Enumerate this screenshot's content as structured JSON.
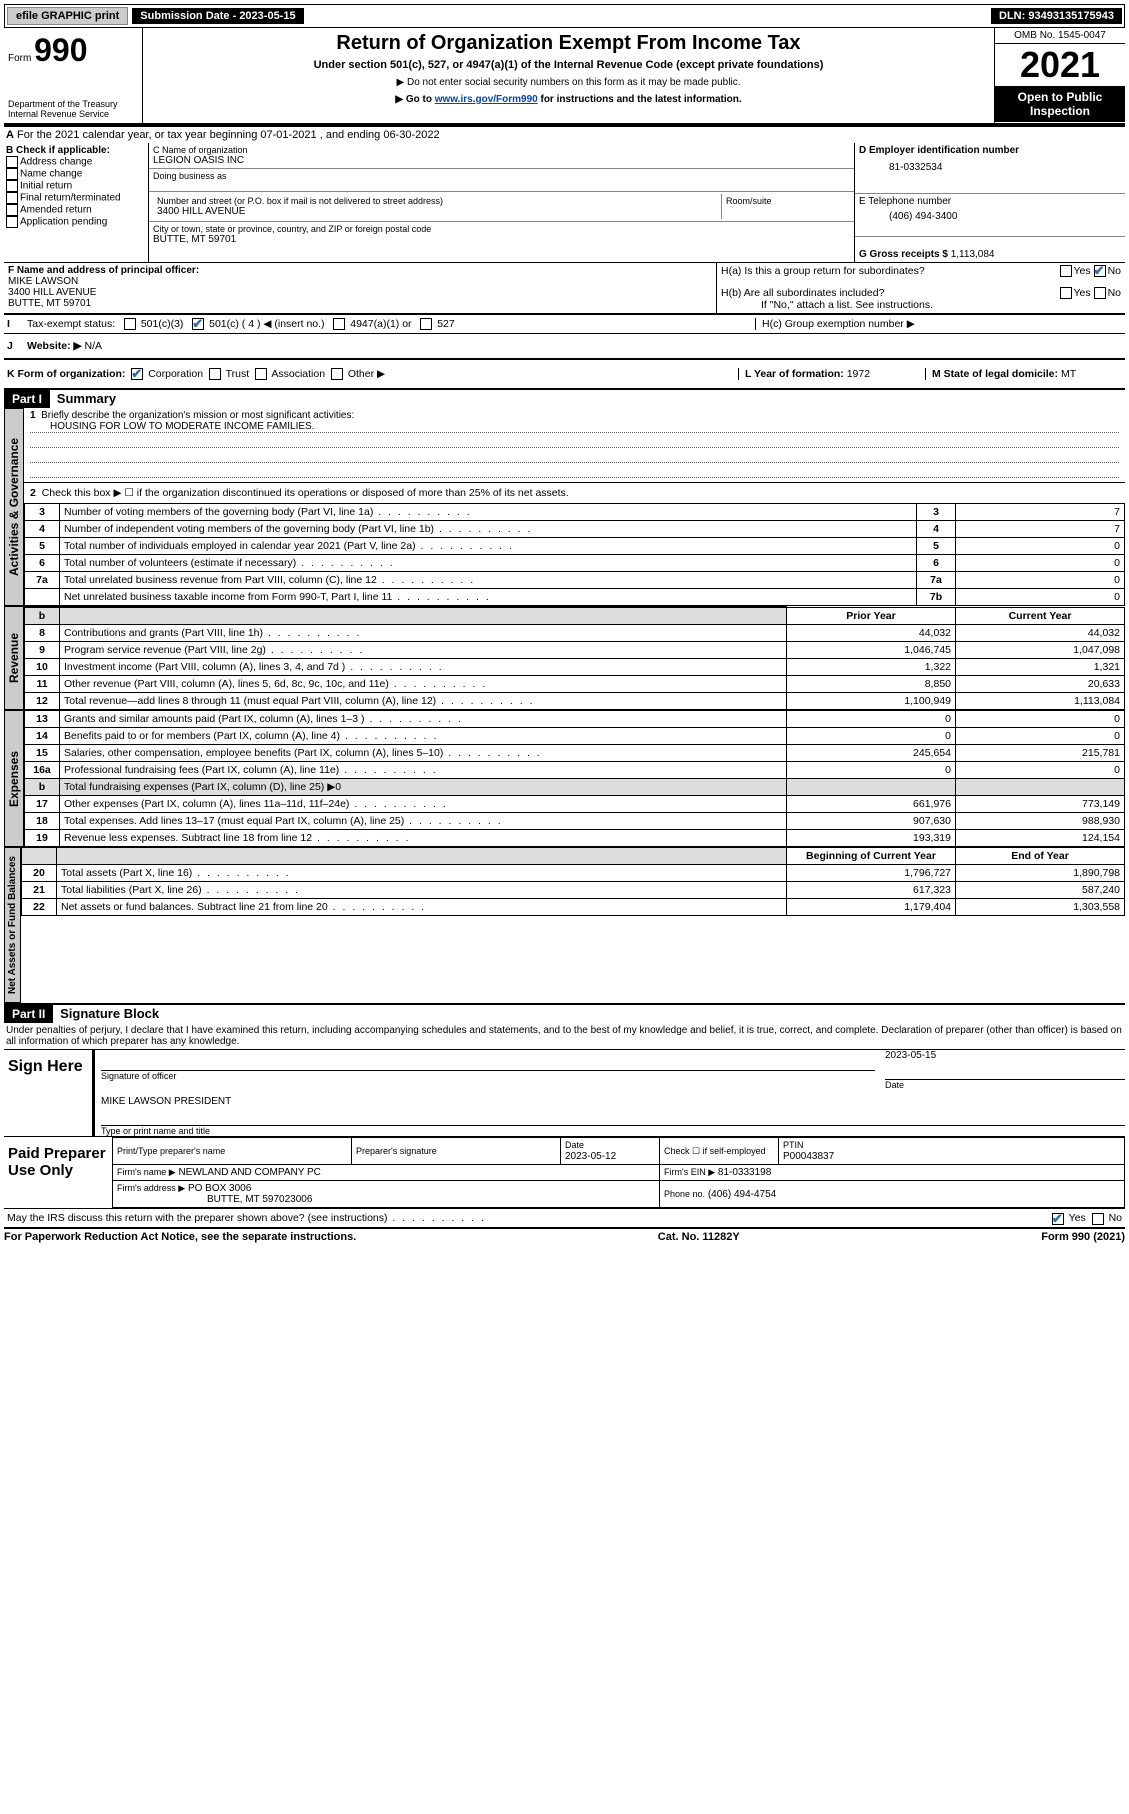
{
  "topbar": {
    "efile": "efile GRAPHIC print",
    "sub_label": "Submission Date - 2023-05-15",
    "dln": "DLN: 93493135175943"
  },
  "header": {
    "form_prefix": "Form",
    "form_no": "990",
    "dept": "Department of the Treasury",
    "irs": "Internal Revenue Service",
    "title": "Return of Organization Exempt From Income Tax",
    "sub1": "Under section 501(c), 527, or 4947(a)(1) of the Internal Revenue Code (except private foundations)",
    "sub2": "▶ Do not enter social security numbers on this form as it may be made public.",
    "sub3_pre": "▶ Go to ",
    "sub3_link": "www.irs.gov/Form990",
    "sub3_post": " for instructions and the latest information.",
    "omb": "OMB No. 1545-0047",
    "year": "2021",
    "open": "Open to Public Inspection"
  },
  "A": {
    "text": "For the 2021 calendar year, or tax year beginning 07-01-2021   , and ending 06-30-2022"
  },
  "B": {
    "hdr": "B Check if applicable:",
    "items": [
      "Address change",
      "Name change",
      "Initial return",
      "Final return/terminated",
      "Amended return",
      "Application pending"
    ]
  },
  "C": {
    "name_hdr": "C Name of organization",
    "name": "LEGION OASIS INC",
    "dba_hdr": "Doing business as",
    "dba": "",
    "addr_hdr": "Number and street (or P.O. box if mail is not delivered to street address)",
    "room_hdr": "Room/suite",
    "addr": "3400 HILL AVENUE",
    "city_hdr": "City or town, state or province, country, and ZIP or foreign postal code",
    "city": "BUTTE, MT  59701"
  },
  "D": {
    "hdr": "D Employer identification number",
    "val": "81-0332534"
  },
  "E": {
    "hdr": "E Telephone number",
    "val": "(406) 494-3400"
  },
  "G": {
    "hdr": "G Gross receipts $",
    "val": "1,113,084"
  },
  "F": {
    "hdr": "F Name and address of principal officer:",
    "l1": "MIKE LAWSON",
    "l2": "3400 HILL AVENUE",
    "l3": "BUTTE, MT  59701"
  },
  "H": {
    "a": "H(a)  Is this a group return for subordinates?",
    "a_yes": "Yes",
    "a_no": "No",
    "b": "H(b)  Are all subordinates included?",
    "b_yes": "Yes",
    "b_no": "No",
    "b_note": "If \"No,\" attach a list. See instructions.",
    "c": "H(c)  Group exemption number ▶"
  },
  "I": {
    "label": "Tax-exempt status:",
    "o1": "501(c)(3)",
    "o2": "501(c) ( 4 ) ◀ (insert no.)",
    "o3": "4947(a)(1) or",
    "o4": "527"
  },
  "J": {
    "label": "Website: ▶",
    "val": "N/A"
  },
  "K": {
    "label": "K Form of organization:",
    "opts": [
      "Corporation",
      "Trust",
      "Association",
      "Other ▶"
    ]
  },
  "L": {
    "label": "L Year of formation:",
    "val": "1972"
  },
  "M": {
    "label": "M State of legal domicile:",
    "val": "MT"
  },
  "part1": {
    "hdr": "Part I",
    "title": "Summary",
    "q1": "Briefly describe the organization's mission or most significant activities:",
    "q1a": "HOUSING FOR LOW TO MODERATE INCOME FAMILIES.",
    "q2": "Check this box ▶ ☐ if the organization discontinued its operations or disposed of more than 25% of its net assets.",
    "rows_gov": [
      {
        "n": "3",
        "t": "Number of voting members of the governing body (Part VI, line 1a)",
        "box": "3",
        "v": "7"
      },
      {
        "n": "4",
        "t": "Number of independent voting members of the governing body (Part VI, line 1b)",
        "box": "4",
        "v": "7"
      },
      {
        "n": "5",
        "t": "Total number of individuals employed in calendar year 2021 (Part V, line 2a)",
        "box": "5",
        "v": "0"
      },
      {
        "n": "6",
        "t": "Total number of volunteers (estimate if necessary)",
        "box": "6",
        "v": "0"
      },
      {
        "n": "7a",
        "t": "Total unrelated business revenue from Part VIII, column (C), line 12",
        "box": "7a",
        "v": "0"
      },
      {
        "n": "",
        "t": "Net unrelated business taxable income from Form 990-T, Part I, line 11",
        "box": "7b",
        "v": "0"
      }
    ],
    "col_prior": "Prior Year",
    "col_curr": "Current Year",
    "rev": [
      {
        "n": "8",
        "t": "Contributions and grants (Part VIII, line 1h)",
        "p": "44,032",
        "c": "44,032"
      },
      {
        "n": "9",
        "t": "Program service revenue (Part VIII, line 2g)",
        "p": "1,046,745",
        "c": "1,047,098"
      },
      {
        "n": "10",
        "t": "Investment income (Part VIII, column (A), lines 3, 4, and 7d )",
        "p": "1,322",
        "c": "1,321"
      },
      {
        "n": "11",
        "t": "Other revenue (Part VIII, column (A), lines 5, 6d, 8c, 9c, 10c, and 11e)",
        "p": "8,850",
        "c": "20,633"
      },
      {
        "n": "12",
        "t": "Total revenue—add lines 8 through 11 (must equal Part VIII, column (A), line 12)",
        "p": "1,100,949",
        "c": "1,113,084"
      }
    ],
    "exp": [
      {
        "n": "13",
        "t": "Grants and similar amounts paid (Part IX, column (A), lines 1–3 )",
        "p": "0",
        "c": "0"
      },
      {
        "n": "14",
        "t": "Benefits paid to or for members (Part IX, column (A), line 4)",
        "p": "0",
        "c": "0"
      },
      {
        "n": "15",
        "t": "Salaries, other compensation, employee benefits (Part IX, column (A), lines 5–10)",
        "p": "245,654",
        "c": "215,781"
      },
      {
        "n": "16a",
        "t": "Professional fundraising fees (Part IX, column (A), line 11e)",
        "p": "0",
        "c": "0"
      },
      {
        "n": "b",
        "t": "Total fundraising expenses (Part IX, column (D), line 25) ▶0",
        "p": "",
        "c": "",
        "grey": true
      },
      {
        "n": "17",
        "t": "Other expenses (Part IX, column (A), lines 11a–11d, 11f–24e)",
        "p": "661,976",
        "c": "773,149"
      },
      {
        "n": "18",
        "t": "Total expenses. Add lines 13–17 (must equal Part IX, column (A), line 25)",
        "p": "907,630",
        "c": "988,930"
      },
      {
        "n": "19",
        "t": "Revenue less expenses. Subtract line 18 from line 12",
        "p": "193,319",
        "c": "124,154"
      }
    ],
    "col_begin": "Beginning of Current Year",
    "col_end": "End of Year",
    "net": [
      {
        "n": "20",
        "t": "Total assets (Part X, line 16)",
        "p": "1,796,727",
        "c": "1,890,798"
      },
      {
        "n": "21",
        "t": "Total liabilities (Part X, line 26)",
        "p": "617,323",
        "c": "587,240"
      },
      {
        "n": "22",
        "t": "Net assets or fund balances. Subtract line 21 from line 20",
        "p": "1,179,404",
        "c": "1,303,558"
      }
    ]
  },
  "part2": {
    "hdr": "Part II",
    "title": "Signature Block",
    "decl": "Under penalties of perjury, I declare that I have examined this return, including accompanying schedules and statements, and to the best of my knowledge and belief, it is true, correct, and complete. Declaration of preparer (other than officer) is based on all information of which preparer has any knowledge.",
    "sign": "Sign Here",
    "sig_off": "Signature of officer",
    "sig_date": "Date",
    "sig_date_val": "2023-05-15",
    "sig_name": "MIKE LAWSON  PRESIDENT",
    "sig_name_lbl": "Type or print name and title",
    "paid": "Paid Preparer Use Only",
    "p_name": "Print/Type preparer's name",
    "p_sig": "Preparer's signature",
    "p_date": "Date",
    "p_date_val": "2023-05-12",
    "p_check": "Check ☐ if self-employed",
    "p_ptin": "PTIN",
    "p_ptin_val": "P00043837",
    "firm_name_lbl": "Firm's name    ▶",
    "firm_name": "NEWLAND AND COMPANY PC",
    "firm_ein_lbl": "Firm's EIN ▶",
    "firm_ein": "81-0333198",
    "firm_addr_lbl": "Firm's address ▶",
    "firm_addr1": "PO BOX 3006",
    "firm_addr2": "BUTTE, MT  597023006",
    "firm_phone_lbl": "Phone no.",
    "firm_phone": "(406) 494-4754",
    "discuss": "May the IRS discuss this return with the preparer shown above? (see instructions)",
    "d_yes": "Yes",
    "d_no": "No"
  },
  "footer": {
    "l": "For Paperwork Reduction Act Notice, see the separate instructions.",
    "m": "Cat. No. 11282Y",
    "r": "Form 990 (2021)"
  },
  "tabs": {
    "gov": "Activities & Governance",
    "rev": "Revenue",
    "exp": "Expenses",
    "net": "Net Assets or Fund Balances"
  }
}
